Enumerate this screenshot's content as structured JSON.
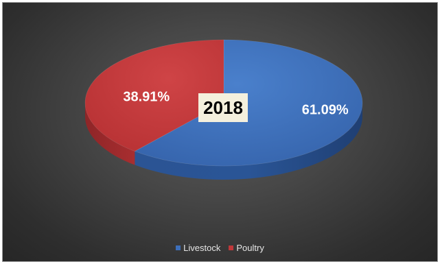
{
  "colors": {
    "livestock": "#3d6fba",
    "poultry": "#c0383a"
  },
  "chart_data": {
    "type": "pie",
    "style": "3d",
    "title": "",
    "center_label": "2018",
    "series": [
      {
        "name": "",
        "categories": [
          "Livestock",
          "Poultry"
        ],
        "values": [
          61.09,
          38.91
        ],
        "data_labels": [
          "61.09%",
          "38.91%"
        ]
      }
    ],
    "legend": {
      "position": "bottom",
      "entries": [
        "Livestock",
        "Poultry"
      ]
    }
  }
}
